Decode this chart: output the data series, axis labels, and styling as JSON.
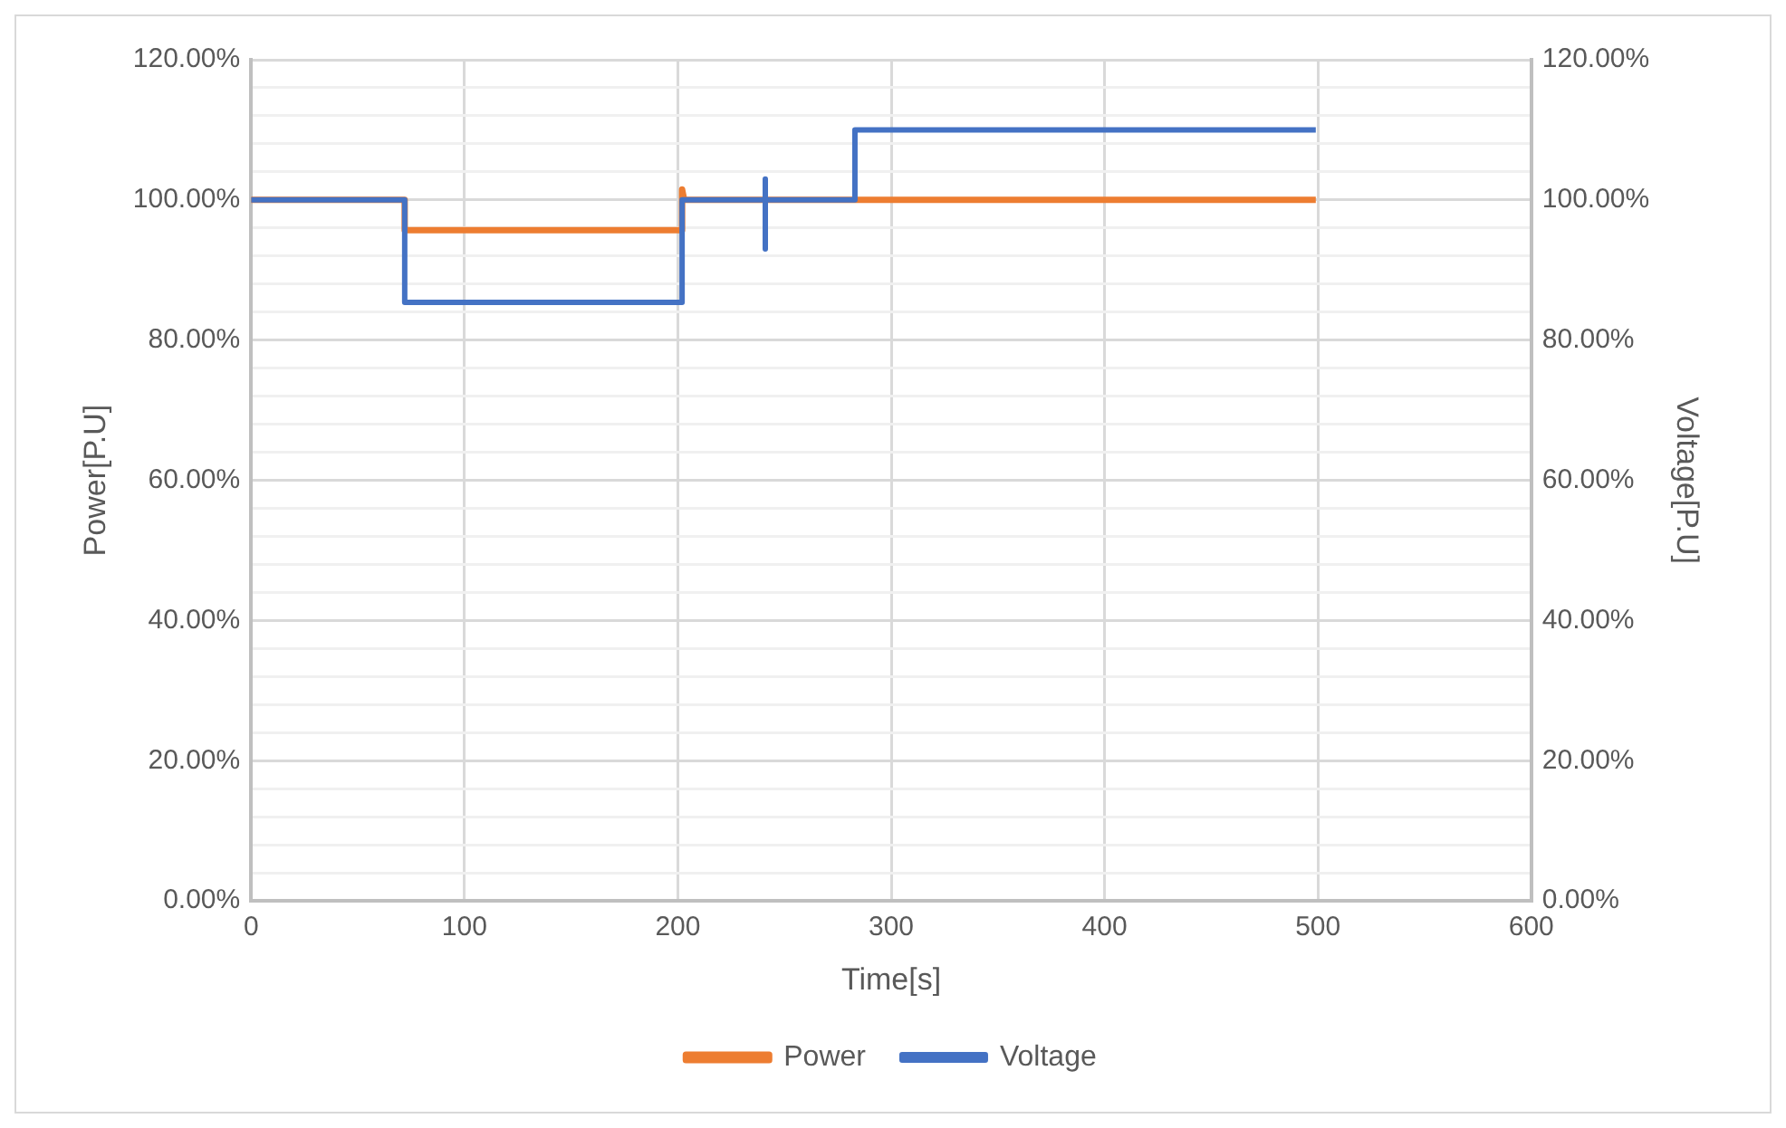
{
  "chart_data": {
    "type": "line",
    "xlabel": "Time[s]",
    "ylabel": "Power[P.U]",
    "y2label": "Voltage[P.U]",
    "xlim": [
      0,
      600
    ],
    "xticks": [
      0,
      100,
      200,
      300,
      400,
      500,
      600
    ],
    "ylim": [
      0,
      120
    ],
    "yticks": [
      {
        "value": 0,
        "label": "0.00%"
      },
      {
        "value": 4,
        "label": null
      },
      {
        "value": 8,
        "label": null
      },
      {
        "value": 12,
        "label": null
      },
      {
        "value": 16,
        "label": null
      },
      {
        "value": 20,
        "label": "20.00%"
      },
      {
        "value": 24,
        "label": null
      },
      {
        "value": 28,
        "label": null
      },
      {
        "value": 32,
        "label": null
      },
      {
        "value": 36,
        "label": null
      },
      {
        "value": 40,
        "label": "40.00%"
      },
      {
        "value": 44,
        "label": null
      },
      {
        "value": 48,
        "label": null
      },
      {
        "value": 52,
        "label": null
      },
      {
        "value": 56,
        "label": null
      },
      {
        "value": 60,
        "label": "60.00%"
      },
      {
        "value": 64,
        "label": null
      },
      {
        "value": 68,
        "label": null
      },
      {
        "value": 72,
        "label": null
      },
      {
        "value": 76,
        "label": null
      },
      {
        "value": 80,
        "label": "80.00%"
      },
      {
        "value": 84,
        "label": null
      },
      {
        "value": 88,
        "label": null
      },
      {
        "value": 92,
        "label": null
      },
      {
        "value": 96,
        "label": null
      },
      {
        "value": 100,
        "label": "100.00%"
      },
      {
        "value": 104,
        "label": null
      },
      {
        "value": 108,
        "label": null
      },
      {
        "value": 112,
        "label": null
      },
      {
        "value": 116,
        "label": null
      },
      {
        "value": 120,
        "label": "120.00%"
      }
    ],
    "y2lim": [
      0,
      120
    ],
    "y2ticks": [
      {
        "value": 0,
        "label": "0.00%"
      },
      {
        "value": 20,
        "label": "20.00%"
      },
      {
        "value": 40,
        "label": "40.00%"
      },
      {
        "value": 60,
        "label": "60.00%"
      },
      {
        "value": 80,
        "label": "80.00%"
      },
      {
        "value": 100,
        "label": "100.00%"
      },
      {
        "value": 120,
        "label": "120.00%"
      }
    ],
    "grid": true,
    "legend": "bottom",
    "marker": "none",
    "line_style": "solid",
    "series": [
      {
        "name": "Power",
        "color": "#ed7d31",
        "x": [
          0,
          72,
          72,
          202,
          202,
          203,
          499
        ],
        "values": [
          100,
          100,
          95.7,
          95.7,
          101.5,
          100,
          100
        ]
      },
      {
        "name": "Voltage",
        "color": "#4472c4",
        "axis": "y2",
        "x": [
          0,
          72,
          72,
          202,
          202,
          241,
          241,
          241,
          241,
          283,
          283,
          499
        ],
        "values": [
          100,
          100,
          85.4,
          85.4,
          100,
          100,
          103,
          93,
          100,
          100,
          110,
          110
        ]
      }
    ]
  }
}
